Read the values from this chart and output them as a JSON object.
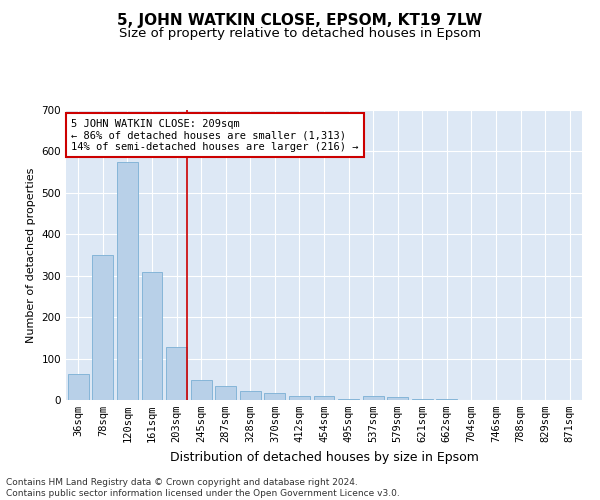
{
  "title1": "5, JOHN WATKIN CLOSE, EPSOM, KT19 7LW",
  "title2": "Size of property relative to detached houses in Epsom",
  "xlabel": "Distribution of detached houses by size in Epsom",
  "ylabel": "Number of detached properties",
  "categories": [
    "36sqm",
    "78sqm",
    "120sqm",
    "161sqm",
    "203sqm",
    "245sqm",
    "287sqm",
    "328sqm",
    "370sqm",
    "412sqm",
    "454sqm",
    "495sqm",
    "537sqm",
    "579sqm",
    "621sqm",
    "662sqm",
    "704sqm",
    "746sqm",
    "788sqm",
    "829sqm",
    "871sqm"
  ],
  "values": [
    62,
    350,
    575,
    310,
    128,
    48,
    35,
    22,
    17,
    10,
    10,
    3,
    10,
    8,
    3,
    2,
    1,
    1,
    1,
    1,
    1
  ],
  "bar_color": "#b8d0e8",
  "bar_edge_color": "#7aafd4",
  "vline_color": "#cc0000",
  "vline_x_index": 4.43,
  "annotation_line1": "5 JOHN WATKIN CLOSE: 209sqm",
  "annotation_line2": "← 86% of detached houses are smaller (1,313)",
  "annotation_line3": "14% of semi-detached houses are larger (216) →",
  "annotation_box_edgecolor": "#cc0000",
  "ylim": [
    0,
    700
  ],
  "yticks": [
    0,
    100,
    200,
    300,
    400,
    500,
    600,
    700
  ],
  "footer": "Contains HM Land Registry data © Crown copyright and database right 2024.\nContains public sector information licensed under the Open Government Licence v3.0.",
  "bg_color": "#dde8f5",
  "fig_bg_color": "#ffffff",
  "title1_fontsize": 11,
  "title2_fontsize": 9.5,
  "xlabel_fontsize": 9,
  "ylabel_fontsize": 8,
  "tick_fontsize": 7.5,
  "annotation_fontsize": 7.5,
  "footer_fontsize": 6.5
}
